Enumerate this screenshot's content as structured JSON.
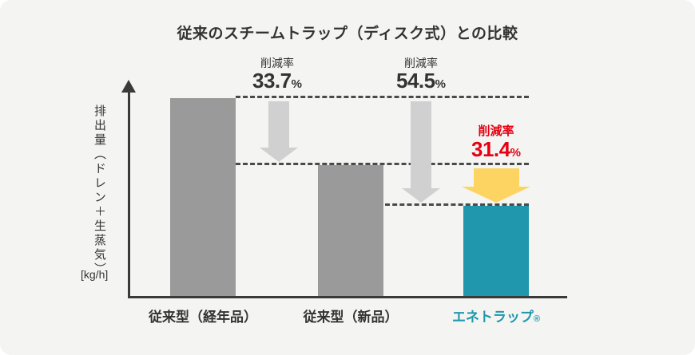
{
  "title": "従来のスチームトラップ（ディスク式）との比較",
  "y_axis": {
    "label": "排出量（ドレン＋生蒸気）",
    "unit": "[kg/h]"
  },
  "annotations": [
    {
      "caption": "削減率",
      "value": "33.7",
      "unit": "%"
    },
    {
      "caption": "削減率",
      "value": "54.5",
      "unit": "%"
    },
    {
      "caption": "削減率",
      "value": "31.4",
      "unit": "%"
    }
  ],
  "bar_labels": [
    {
      "text": "従来型（経年品）",
      "suffix": "",
      "color": "#333333"
    },
    {
      "text": "従来型（新品）",
      "suffix": "",
      "color": "#333333"
    },
    {
      "text": "エネトラップ",
      "suffix": "®",
      "color": "#2097ad"
    }
  ],
  "colors": {
    "background": "#f4f5f2",
    "axis": "#3a3a3a",
    "bar_gray": "#9a9a9a",
    "bar_teal": "#2097ad",
    "arrow_gray": "#d0d0d0",
    "arrow_yellow": "#fdd462",
    "accent_red": "#e60012",
    "text_dark": "#333333",
    "dotted_line": "#4a4a4a"
  },
  "chart_data": {
    "type": "bar",
    "title": "従来のスチームトラップ（ディスク式）との比較",
    "categories": [
      "従来型（経年品）",
      "従来型（新品）",
      "エネトラップ®"
    ],
    "values": [
      100,
      66.3,
      45.5
    ],
    "values_unit": "relative discharge amount, 従来型（経年品） = 100",
    "ylabel": "排出量（ドレン＋生蒸気）[kg/h]",
    "xlabel": "",
    "ylim": [
      0,
      108
    ],
    "grid": false,
    "legend": false,
    "bar_colors": [
      "#9a9a9a",
      "#9a9a9a",
      "#2097ad"
    ],
    "annotations": [
      {
        "text": "削減率 33.7%",
        "from": "従来型（経年品）",
        "to": "従来型（新品）",
        "color": "#333333"
      },
      {
        "text": "削減率 54.5%",
        "from": "従来型（経年品）",
        "to": "エネトラップ®",
        "color": "#333333"
      },
      {
        "text": "削減率 31.4%",
        "from": "従来型（新品）",
        "to": "エネトラップ®",
        "color": "#e60012"
      }
    ]
  }
}
